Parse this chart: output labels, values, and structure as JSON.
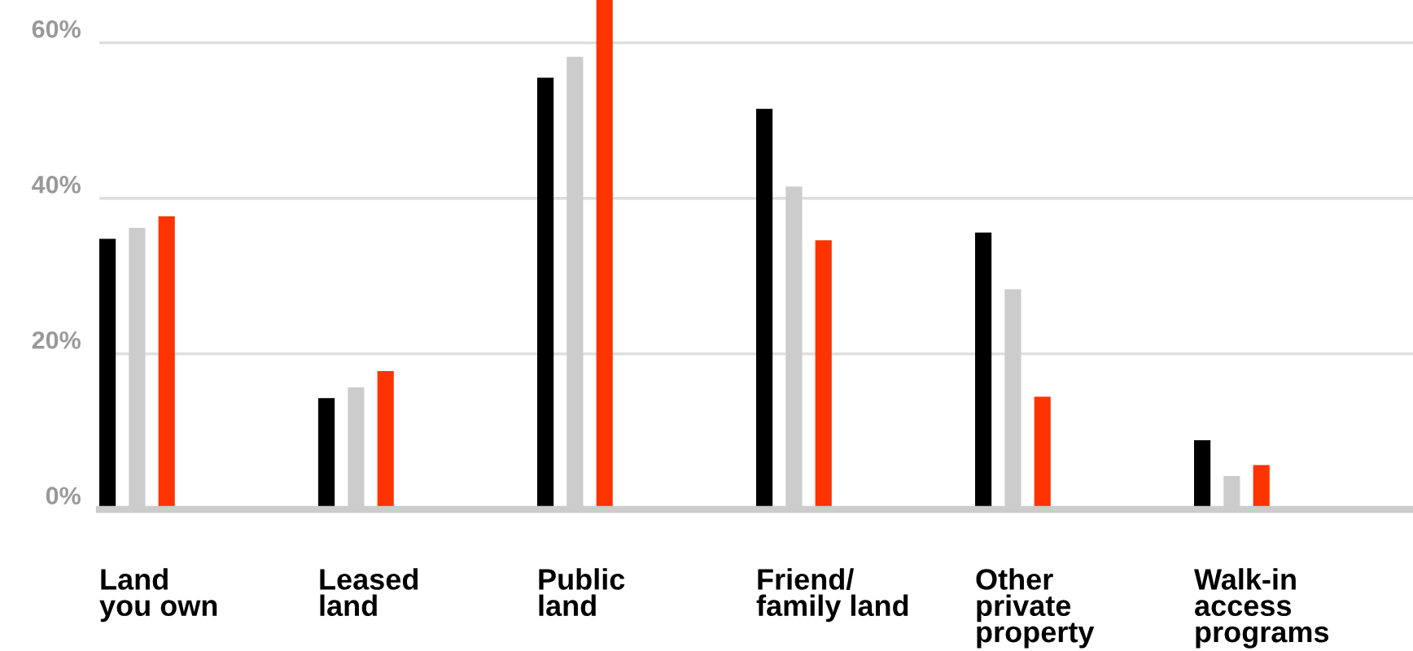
{
  "chart_data": {
    "type": "bar",
    "categories": [
      "Land\nyou own",
      "Leased\nland",
      "Public\nland",
      "Friend/\nfamily land",
      "Other\nprivate\nproperty",
      "Walk-in\naccess\nprograms"
    ],
    "series": [
      {
        "color": "#000000",
        "values": [
          34.8,
          14.3,
          55.5,
          51.5,
          35.6,
          8.9
        ]
      },
      {
        "color": "#cccccc",
        "values": [
          36.2,
          15.7,
          58.2,
          41.5,
          28.3,
          4.3
        ]
      },
      {
        "color": "#ff3300",
        "values": [
          37.7,
          17.8,
          65.5,
          34.6,
          14.5,
          5.7
        ]
      }
    ],
    "ylim": [
      0,
      65.5
    ],
    "yticks": [
      {
        "value": 0,
        "label": "0%"
      },
      {
        "value": 20,
        "label": "20%"
      },
      {
        "value": 40,
        "label": "40%"
      },
      {
        "value": 60,
        "label": "60%"
      }
    ],
    "grid": "y",
    "legend": false
  }
}
